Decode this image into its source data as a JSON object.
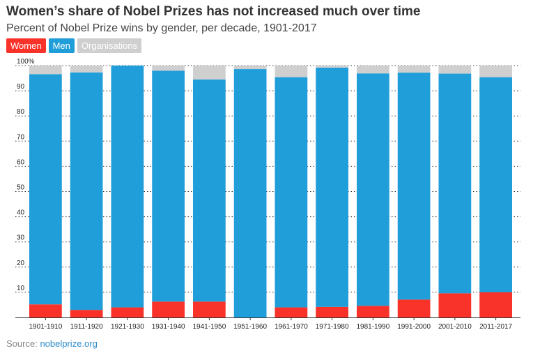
{
  "header": {
    "title": "Women’s share of Nobel Prizes has not increased much over time",
    "subtitle": "Percent of Nobel Prize wins by gender, per decade, 1901-2017"
  },
  "legend": {
    "women": "Women",
    "men": "Men",
    "organisations": "Organisations"
  },
  "colors": {
    "women": "#f9332a",
    "men": "#209ed9",
    "organisations": "#cfcfcf"
  },
  "footer": {
    "source_label": "Source:",
    "source_value": "nobelprize.org"
  },
  "chart_data": {
    "type": "bar",
    "stacked": true,
    "title": "Women’s share of Nobel Prizes has not increased much over time",
    "subtitle": "Percent of Nobel Prize wins by gender, per decade, 1901-2017",
    "xlabel": "",
    "ylabel": "",
    "ylim": [
      0,
      100
    ],
    "yticks": [
      {
        "value": 10,
        "label": "10"
      },
      {
        "value": 20,
        "label": "20"
      },
      {
        "value": 30,
        "label": "30"
      },
      {
        "value": 40,
        "label": "40"
      },
      {
        "value": 50,
        "label": "50"
      },
      {
        "value": 60,
        "label": "60"
      },
      {
        "value": 70,
        "label": "70"
      },
      {
        "value": 80,
        "label": "80"
      },
      {
        "value": 90,
        "label": "90"
      },
      {
        "value": 100,
        "label": "100%"
      }
    ],
    "grid": true,
    "legend_position": "top-left",
    "categories": [
      "1901-1910",
      "1911-1920",
      "1921-1930",
      "1931-1940",
      "1941-1950",
      "1951-1960",
      "1961-1970",
      "1971-1980",
      "1981-1990",
      "1991-2000",
      "2001-2010",
      "2011-2017"
    ],
    "series": [
      {
        "name": "Women",
        "values": [
          5.2,
          3.0,
          4.0,
          6.3,
          6.3,
          0.0,
          4.0,
          4.2,
          4.6,
          7.1,
          9.6,
          10.0
        ]
      },
      {
        "name": "Men",
        "values": [
          91.4,
          94.3,
          96.0,
          91.7,
          88.2,
          98.6,
          91.4,
          95.0,
          92.3,
          90.1,
          87.2,
          85.4
        ]
      },
      {
        "name": "Organisations",
        "values": [
          3.4,
          2.7,
          0.0,
          2.0,
          5.5,
          1.4,
          4.6,
          0.8,
          3.1,
          2.8,
          3.2,
          4.6
        ]
      }
    ]
  }
}
